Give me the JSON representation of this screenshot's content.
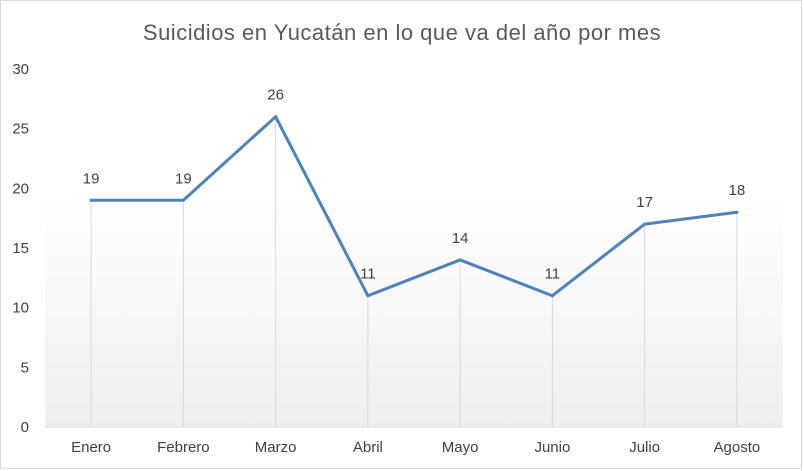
{
  "chart_data": {
    "type": "line",
    "title": "Suicidios en Yucatán en lo que va del año por mes",
    "xlabel": "",
    "ylabel": "",
    "categories": [
      "Enero",
      "Febrero",
      "Marzo",
      "Abril",
      "Mayo",
      "Junio",
      "Julio",
      "Agosto"
    ],
    "series": [
      {
        "values": [
          19,
          19,
          26,
          11,
          14,
          11,
          17,
          18
        ],
        "color": "#4f81bd"
      }
    ],
    "ylim": [
      0,
      30
    ],
    "yticks": [
      0,
      5,
      10,
      15,
      20,
      25,
      30
    ],
    "yticks_labels": [
      "0",
      "5",
      "10",
      "15",
      "20",
      "25",
      "30"
    ],
    "data_labels": true,
    "grid": "vertical drop lines",
    "legend": "none",
    "background": "white to light gray gradient",
    "colors": {
      "line": "#4f81bd",
      "text": "#404040",
      "title": "#595959",
      "droplines": "#d9d9d9"
    }
  }
}
